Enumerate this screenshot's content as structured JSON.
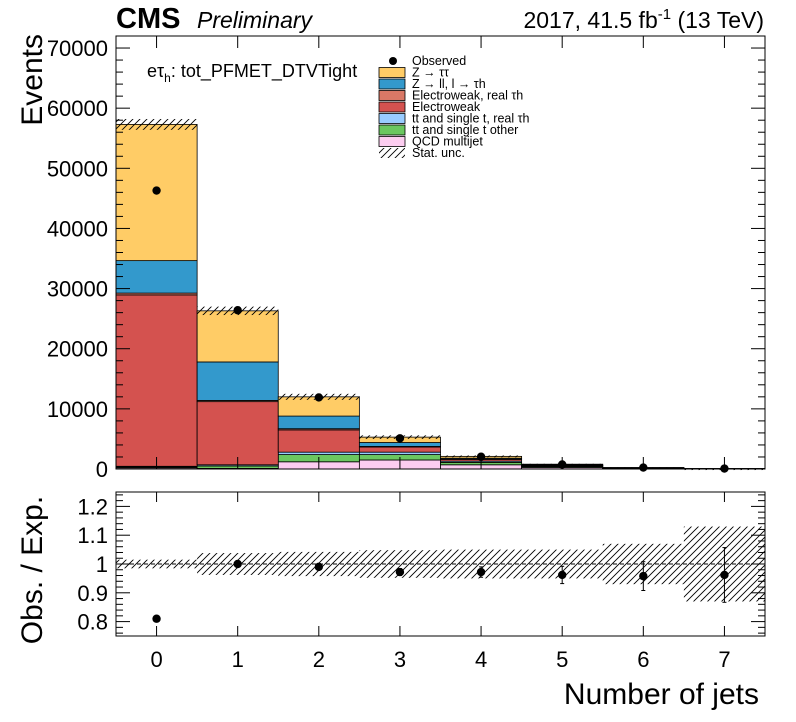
{
  "header": {
    "experiment": "CMS",
    "status": "Preliminary",
    "lumi_prefix": "2017, 41.5 fb",
    "lumi_exp": "-1",
    "lumi_suffix": " (13 TeV)"
  },
  "chart_data": [
    {
      "type": "bar",
      "stacked": true,
      "categories": [
        "0",
        "1",
        "2",
        "3",
        "4",
        "5",
        "6",
        "7"
      ],
      "bin_edges": [
        -0.5,
        0.5,
        1.5,
        2.5,
        3.5,
        4.5,
        5.5,
        6.5,
        7.5
      ],
      "xlabel": "Number of jets",
      "ylabel": "Events",
      "ylim": [
        0,
        72000
      ],
      "yticks": [
        0,
        10000,
        20000,
        30000,
        40000,
        50000,
        60000,
        70000
      ],
      "xticks": [
        0,
        1,
        2,
        3,
        4,
        5,
        6,
        7
      ],
      "channel_prefix": "eτ",
      "channel_sub": "h",
      "channel_suffix": ": tot_PFMET_DTVTight",
      "legend_position": "top-center",
      "series": [
        {
          "key": "qcd",
          "name": "QCD multijet",
          "color": "#fccdf0",
          "values": [
            200,
            100,
            1200,
            1500,
            700,
            250,
            80,
            20
          ]
        },
        {
          "key": "tt_other",
          "name": "tt and single t other",
          "color": "#6bc760",
          "values": [
            150,
            400,
            1200,
            900,
            400,
            150,
            40,
            10
          ]
        },
        {
          "key": "tt_real",
          "name": "tt and single t, real τh",
          "color": "#99ccff",
          "values": [
            100,
            200,
            400,
            400,
            200,
            80,
            20,
            5
          ]
        },
        {
          "key": "ew",
          "name": "Electroweak",
          "color": "#d4524f",
          "values": [
            28500,
            10500,
            3700,
            850,
            300,
            120,
            40,
            10
          ]
        },
        {
          "key": "ew_real",
          "name": "Electroweak, real τh",
          "color": "#d97866",
          "values": [
            300,
            200,
            200,
            100,
            50,
            20,
            10,
            5
          ]
        },
        {
          "key": "zll",
          "name": "Z → ll, l → τh",
          "color": "#3399cc",
          "values": [
            5400,
            6400,
            2100,
            650,
            150,
            60,
            20,
            5
          ]
        },
        {
          "key": "ztt",
          "name": "Z → ττ",
          "color": "#ffcc66",
          "values": [
            22650,
            8500,
            3200,
            900,
            300,
            120,
            40,
            10
          ]
        }
      ],
      "observed": {
        "name": "Observed",
        "values": [
          46300,
          26400,
          11900,
          5100,
          2050,
          760,
          240,
          70
        ]
      },
      "stat_unc": {
        "name": "Stat. unc.",
        "values": [
          900,
          700,
          500,
          300,
          150,
          60,
          30,
          12
        ]
      }
    },
    {
      "type": "scatter",
      "categories": [
        "0",
        "1",
        "2",
        "3",
        "4",
        "5",
        "6",
        "7"
      ],
      "xlabel": "Number of jets",
      "ylabel": "Obs. / Exp.",
      "ylim": [
        0.75,
        1.25
      ],
      "yticks": [
        0.8,
        0.9,
        1,
        1.1,
        1.2
      ],
      "ytick_labels": [
        "0.8",
        "0.9",
        "1",
        "1.1",
        "1.2"
      ],
      "xticks": [
        0,
        1,
        2,
        3,
        4,
        5,
        6,
        7
      ],
      "xtick_labels": [
        "0",
        "1",
        "2",
        "3",
        "4",
        "5",
        "6",
        "7"
      ],
      "reference_line": 1,
      "ratio": [
        0.81,
        1.0,
        0.99,
        0.972,
        0.972,
        0.962,
        0.958,
        0.962
      ],
      "ratio_err": [
        0.004,
        0.006,
        0.008,
        0.012,
        0.018,
        0.03,
        0.05,
        0.095
      ],
      "unc_band": [
        0.015,
        0.038,
        0.042,
        0.048,
        0.05,
        0.05,
        0.07,
        0.13
      ]
    }
  ]
}
